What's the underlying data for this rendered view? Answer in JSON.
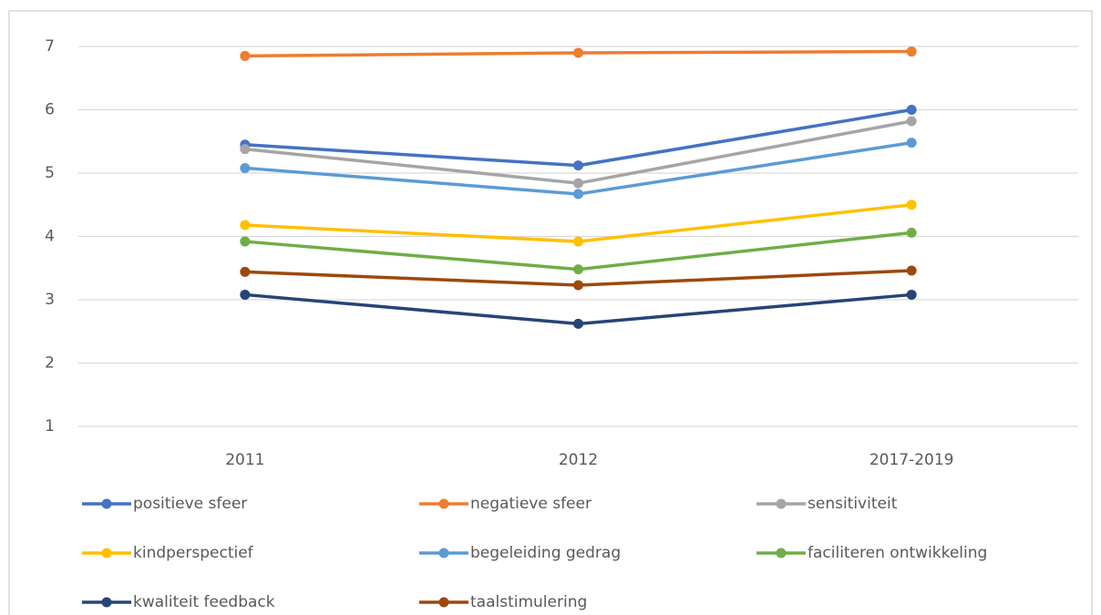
{
  "chart_data": {
    "type": "line",
    "categories": [
      "2011",
      "2012",
      "2017-2019"
    ],
    "series": [
      {
        "name": "positieve sfeer",
        "color": "#4472c4",
        "values": [
          5.45,
          5.12,
          6.0
        ]
      },
      {
        "name": "negatieve sfeer",
        "color": "#ed7d31",
        "values": [
          6.85,
          6.9,
          6.92
        ]
      },
      {
        "name": "sensitiviteit",
        "color": "#a5a5a5",
        "values": [
          5.38,
          4.84,
          5.82
        ]
      },
      {
        "name": "kindperspectief",
        "color": "#ffc000",
        "values": [
          4.18,
          3.92,
          4.5
        ]
      },
      {
        "name": "begeleiding gedrag",
        "color": "#5b9bd5",
        "values": [
          5.08,
          4.67,
          5.48
        ]
      },
      {
        "name": "faciliteren ontwikkeling",
        "color": "#70ad47",
        "values": [
          3.92,
          3.48,
          4.06
        ]
      },
      {
        "name": "kwaliteit feedback",
        "color": "#264478",
        "values": [
          3.08,
          2.62,
          3.08
        ]
      },
      {
        "name": "taalstimulering",
        "color": "#9e480e",
        "values": [
          3.44,
          3.23,
          3.46
        ]
      }
    ],
    "ylim": [
      1,
      7
    ],
    "yticks": [
      1,
      2,
      3,
      4,
      5,
      6,
      7
    ],
    "grid": true,
    "legend": "bottom"
  }
}
